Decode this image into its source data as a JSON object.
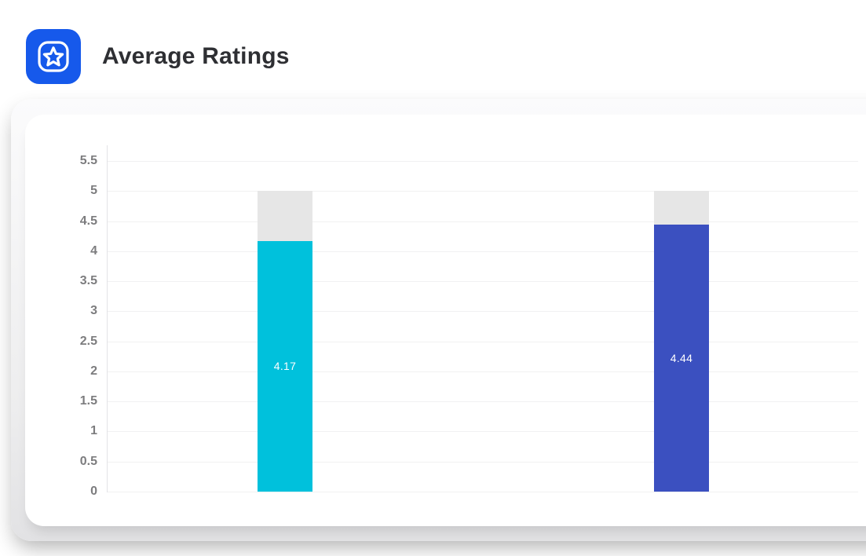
{
  "header": {
    "title": "Average Ratings",
    "icon": "star-badge-icon",
    "icon_bg_color": "#1659EB",
    "icon_glyph_color": "#FFFFFF"
  },
  "chart_data": {
    "type": "bar",
    "title": "Average Ratings",
    "xlabel": "",
    "ylabel": "",
    "ylim": [
      0,
      5.5
    ],
    "grid": true,
    "categories": [
      "",
      ""
    ],
    "values": [
      4.17,
      4.44
    ],
    "data_labels": [
      "4.17",
      "4.44"
    ],
    "bar_colors": [
      "#00C1DC",
      "#3B50C0"
    ],
    "track_max": 5,
    "track_color": "#E6E6E6",
    "y_ticks": [
      5.5,
      5,
      4.5,
      4,
      3.5,
      3,
      2.5,
      2,
      1.5,
      1,
      0.5,
      0
    ],
    "y_tick_labels": [
      "5.5",
      "5",
      "4.5",
      "4",
      "3.5",
      "3",
      "2.5",
      "2",
      "1.5",
      "1",
      "0.5",
      "0"
    ],
    "legend": "none"
  }
}
